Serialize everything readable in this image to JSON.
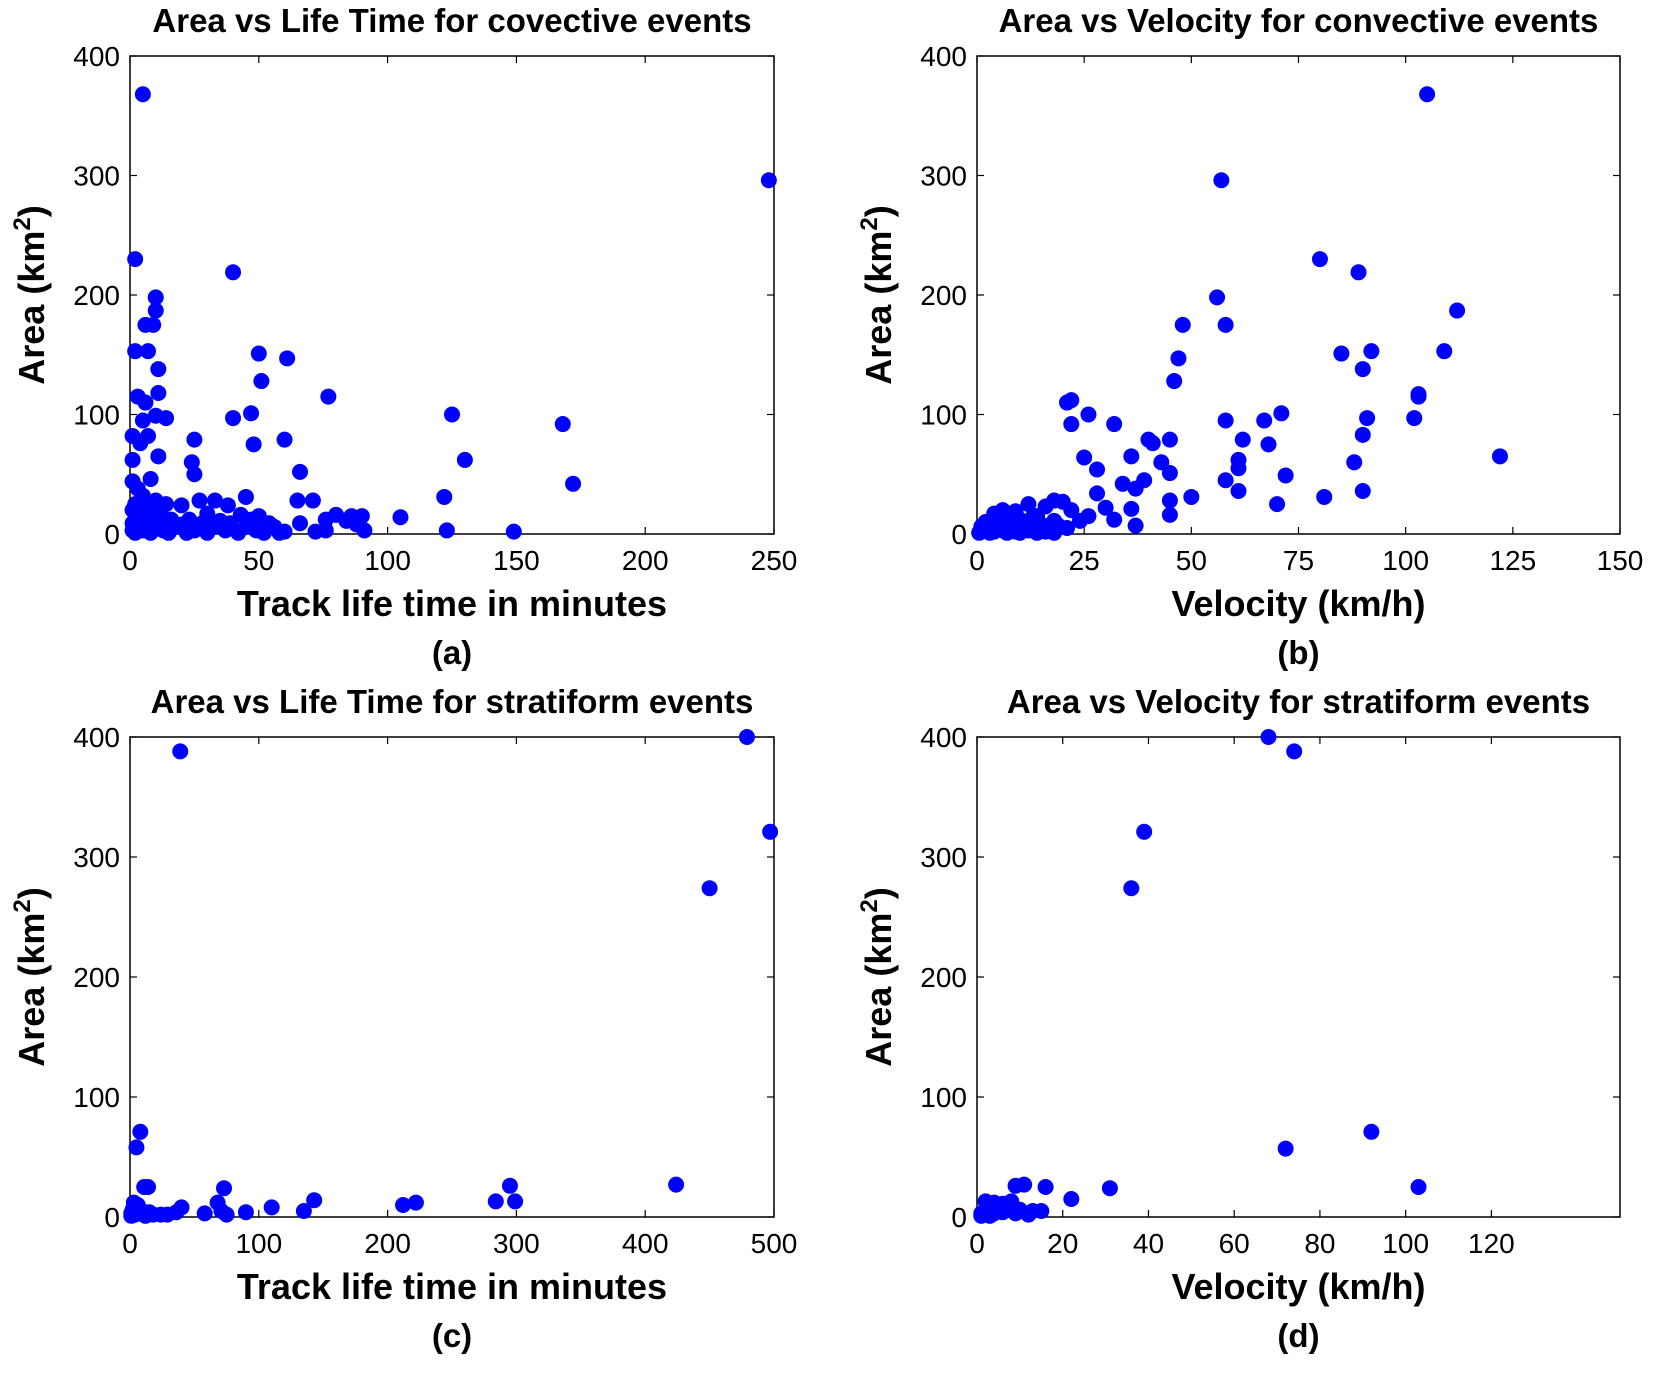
{
  "colors": {
    "marker": "#0000ff",
    "axis": "#000000",
    "background": "#ffffff"
  },
  "chart_data": [
    {
      "id": "a",
      "type": "scatter",
      "title": "Area vs Life Time for covective events",
      "xlabel": "Track life time in minutes",
      "ylabel_main": "Area (km",
      "ylabel_sup": "2",
      "ylabel_end": ")",
      "caption": "(a)",
      "xlim": [
        0,
        250
      ],
      "ylim": [
        0,
        400
      ],
      "xticks": [
        0,
        50,
        100,
        150,
        200,
        250
      ],
      "yticks": [
        0,
        100,
        200,
        300,
        400
      ],
      "grid": false,
      "points": [
        [
          5,
          368
        ],
        [
          248,
          296
        ],
        [
          2,
          230
        ],
        [
          40,
          219
        ],
        [
          10,
          198
        ],
        [
          10,
          187
        ],
        [
          6,
          175
        ],
        [
          9,
          175
        ],
        [
          2,
          153
        ],
        [
          7,
          153
        ],
        [
          50,
          151
        ],
        [
          61,
          147
        ],
        [
          11,
          138
        ],
        [
          51,
          128
        ],
        [
          3,
          115
        ],
        [
          6,
          110
        ],
        [
          11,
          118
        ],
        [
          77,
          115
        ],
        [
          10,
          99
        ],
        [
          14,
          97
        ],
        [
          40,
          97
        ],
        [
          47,
          101
        ],
        [
          125,
          100
        ],
        [
          5,
          95
        ],
        [
          168,
          92
        ],
        [
          1,
          82
        ],
        [
          7,
          82
        ],
        [
          25,
          79
        ],
        [
          4,
          76
        ],
        [
          60,
          79
        ],
        [
          48,
          75
        ],
        [
          11,
          65
        ],
        [
          1,
          62
        ],
        [
          24,
          60
        ],
        [
          130,
          62
        ],
        [
          66,
          52
        ],
        [
          25,
          50
        ],
        [
          8,
          46
        ],
        [
          1,
          44
        ],
        [
          172,
          42
        ],
        [
          3,
          38
        ],
        [
          5,
          32
        ],
        [
          45,
          31
        ],
        [
          122,
          31
        ],
        [
          10,
          28
        ],
        [
          27,
          28
        ],
        [
          33,
          28
        ],
        [
          65,
          28
        ],
        [
          71,
          28
        ],
        [
          2,
          25
        ],
        [
          14,
          25
        ],
        [
          20,
          24
        ],
        [
          38,
          24
        ],
        [
          6,
          22
        ],
        [
          1,
          20
        ],
        [
          4,
          18
        ],
        [
          9,
          18
        ],
        [
          12,
          16
        ],
        [
          30,
          17
        ],
        [
          43,
          16
        ],
        [
          50,
          15
        ],
        [
          80,
          16
        ],
        [
          86,
          15
        ],
        [
          90,
          15
        ],
        [
          105,
          14
        ],
        [
          2,
          12
        ],
        [
          7,
          12
        ],
        [
          16,
          12
        ],
        [
          23,
          12
        ],
        [
          35,
          11
        ],
        [
          47,
          12
        ],
        [
          76,
          12
        ],
        [
          84,
          11
        ],
        [
          1,
          9
        ],
        [
          4,
          9
        ],
        [
          9,
          9
        ],
        [
          20,
          8
        ],
        [
          28,
          9
        ],
        [
          39,
          9
        ],
        [
          54,
          9
        ],
        [
          66,
          9
        ],
        [
          88,
          8
        ],
        [
          3,
          6
        ],
        [
          11,
          6
        ],
        [
          18,
          6
        ],
        [
          32,
          6
        ],
        [
          45,
          6
        ],
        [
          56,
          6
        ],
        [
          1,
          3
        ],
        [
          5,
          3
        ],
        [
          13,
          3
        ],
        [
          25,
          3
        ],
        [
          37,
          3
        ],
        [
          49,
          3
        ],
        [
          60,
          2
        ],
        [
          72,
          2
        ],
        [
          76,
          3
        ],
        [
          91,
          3
        ],
        [
          123,
          3
        ],
        [
          149,
          2
        ],
        [
          2,
          1
        ],
        [
          8,
          1
        ],
        [
          15,
          1
        ],
        [
          22,
          1
        ],
        [
          30,
          1
        ],
        [
          42,
          1
        ],
        [
          52,
          1
        ],
        [
          58,
          1
        ]
      ]
    },
    {
      "id": "b",
      "type": "scatter",
      "title": "Area vs Velocity for convective events",
      "xlabel": "Velocity (km/h)",
      "ylabel_main": "Area (km",
      "ylabel_sup": "2",
      "ylabel_end": ")",
      "caption": "(b)",
      "xlim": [
        0,
        150
      ],
      "ylim": [
        0,
        400
      ],
      "xticks": [
        0,
        25,
        50,
        75,
        100,
        125,
        150
      ],
      "yticks": [
        0,
        100,
        200,
        300,
        400
      ],
      "grid": false,
      "points": [
        [
          105,
          368
        ],
        [
          57,
          296
        ],
        [
          80,
          230
        ],
        [
          89,
          219
        ],
        [
          56,
          198
        ],
        [
          112,
          187
        ],
        [
          58,
          175
        ],
        [
          48,
          175
        ],
        [
          85,
          151
        ],
        [
          92,
          153
        ],
        [
          109,
          153
        ],
        [
          47,
          147
        ],
        [
          90,
          138
        ],
        [
          46,
          128
        ],
        [
          103,
          117
        ],
        [
          103,
          115
        ],
        [
          22,
          112
        ],
        [
          21,
          110
        ],
        [
          58,
          95
        ],
        [
          67,
          95
        ],
        [
          71,
          101
        ],
        [
          102,
          97
        ],
        [
          91,
          97
        ],
        [
          26,
          100
        ],
        [
          22,
          92
        ],
        [
          32,
          92
        ],
        [
          90,
          83
        ],
        [
          40,
          79
        ],
        [
          62,
          79
        ],
        [
          41,
          76
        ],
        [
          45,
          79
        ],
        [
          68,
          75
        ],
        [
          36,
          65
        ],
        [
          25,
          64
        ],
        [
          122,
          65
        ],
        [
          88,
          60
        ],
        [
          61,
          62
        ],
        [
          43,
          60
        ],
        [
          28,
          54
        ],
        [
          61,
          55
        ],
        [
          45,
          51
        ],
        [
          72,
          49
        ],
        [
          39,
          45
        ],
        [
          34,
          42
        ],
        [
          58,
          45
        ],
        [
          37,
          38
        ],
        [
          61,
          36
        ],
        [
          90,
          36
        ],
        [
          81,
          31
        ],
        [
          50,
          31
        ],
        [
          28,
          34
        ],
        [
          45,
          28
        ],
        [
          70,
          25
        ],
        [
          30,
          22
        ],
        [
          36,
          21
        ],
        [
          18,
          28
        ],
        [
          20,
          27
        ],
        [
          16,
          23
        ],
        [
          12,
          25
        ],
        [
          22,
          20
        ],
        [
          9,
          19
        ],
        [
          6,
          20
        ],
        [
          4,
          17
        ],
        [
          14,
          15
        ],
        [
          26,
          15
        ],
        [
          45,
          16
        ],
        [
          10,
          12
        ],
        [
          2,
          10
        ],
        [
          7,
          10
        ],
        [
          18,
          11
        ],
        [
          24,
          11
        ],
        [
          32,
          12
        ],
        [
          1,
          6
        ],
        [
          3,
          7
        ],
        [
          5,
          5
        ],
        [
          8,
          7
        ],
        [
          11,
          6
        ],
        [
          15,
          8
        ],
        [
          19,
          7
        ],
        [
          21,
          5
        ],
        [
          37,
          7
        ],
        [
          1,
          2
        ],
        [
          2,
          3
        ],
        [
          4,
          2
        ],
        [
          6,
          3
        ],
        [
          9,
          2
        ],
        [
          12,
          3
        ],
        [
          16,
          2
        ],
        [
          13,
          14
        ],
        [
          0.5,
          1
        ],
        [
          3,
          1
        ],
        [
          7,
          1
        ],
        [
          10,
          1
        ],
        [
          14,
          1
        ],
        [
          18,
          1
        ]
      ]
    },
    {
      "id": "c",
      "type": "scatter",
      "title": "Area vs Life Time for stratiform events",
      "xlabel": "Track life time in minutes",
      "ylabel_main": "Area (km",
      "ylabel_sup": "2",
      "ylabel_end": ")",
      "caption": "(c)",
      "xlim": [
        0,
        500
      ],
      "ylim": [
        0,
        400
      ],
      "xticks": [
        0,
        100,
        200,
        300,
        400,
        500
      ],
      "yticks": [
        0,
        100,
        200,
        300,
        400
      ],
      "grid": false,
      "points": [
        [
          39,
          388
        ],
        [
          479,
          400
        ],
        [
          497,
          321
        ],
        [
          450,
          274
        ],
        [
          8,
          71
        ],
        [
          5,
          58
        ],
        [
          424,
          27
        ],
        [
          295,
          26
        ],
        [
          11,
          25
        ],
        [
          14,
          25
        ],
        [
          73,
          24
        ],
        [
          143,
          14
        ],
        [
          299,
          13
        ],
        [
          284,
          13
        ],
        [
          222,
          12
        ],
        [
          212,
          10
        ],
        [
          68,
          12
        ],
        [
          3,
          12
        ],
        [
          6,
          10
        ],
        [
          110,
          8
        ],
        [
          40,
          8
        ],
        [
          2,
          6
        ],
        [
          9,
          5
        ],
        [
          15,
          4
        ],
        [
          36,
          4
        ],
        [
          71,
          5
        ],
        [
          90,
          4
        ],
        [
          135,
          5
        ],
        [
          1,
          3
        ],
        [
          4,
          2
        ],
        [
          18,
          2
        ],
        [
          24,
          2
        ],
        [
          29,
          2
        ],
        [
          58,
          3
        ],
        [
          75,
          2
        ],
        [
          1,
          1
        ],
        [
          12,
          1
        ]
      ]
    },
    {
      "id": "d",
      "type": "scatter",
      "title": "Area vs Velocity for stratiform events",
      "xlabel": "Velocity (km/h)",
      "ylabel_main": "Area (km",
      "ylabel_sup": "2",
      "ylabel_end": ")",
      "caption": "(d)",
      "xlim": [
        0,
        150
      ],
      "ylim": [
        0,
        400
      ],
      "xticks": [
        0,
        20,
        40,
        60,
        80,
        100,
        120
      ],
      "yticks": [
        0,
        100,
        200,
        300,
        400
      ],
      "grid": false,
      "points": [
        [
          68,
          400
        ],
        [
          74,
          388
        ],
        [
          39,
          321
        ],
        [
          36,
          274
        ],
        [
          92,
          71
        ],
        [
          72,
          57
        ],
        [
          103,
          25
        ],
        [
          11,
          27
        ],
        [
          9,
          26
        ],
        [
          16,
          25
        ],
        [
          31,
          24
        ],
        [
          22,
          15
        ],
        [
          2,
          13
        ],
        [
          4,
          12
        ],
        [
          6,
          11
        ],
        [
          8,
          13
        ],
        [
          3,
          9
        ],
        [
          5,
          8
        ],
        [
          7,
          7
        ],
        [
          10,
          6
        ],
        [
          13,
          5
        ],
        [
          15,
          5
        ],
        [
          1,
          3
        ],
        [
          2,
          4
        ],
        [
          4,
          3
        ],
        [
          6,
          4
        ],
        [
          9,
          3
        ],
        [
          12,
          2
        ],
        [
          1,
          1
        ],
        [
          3,
          1
        ]
      ]
    }
  ]
}
